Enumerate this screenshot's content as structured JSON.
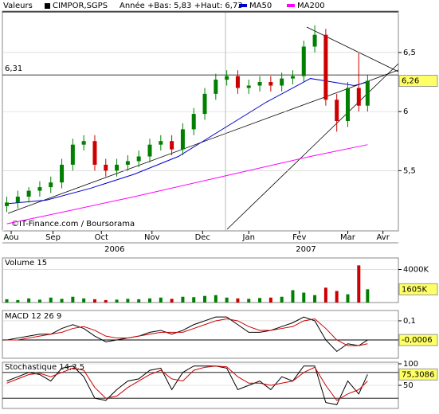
{
  "header": {
    "menu": "Valeurs"
  },
  "chart_data": [
    {
      "type": "candlestick",
      "title": "CIMPOR,SGPS",
      "subtitle": "Année +Bas: 5,83 +Haut: 6,73",
      "source": "©IT-Finance.com / Boursorama",
      "x": [
        2,
        7,
        12,
        17,
        22,
        27,
        32,
        37,
        42,
        47,
        52,
        57,
        62,
        67,
        72,
        77,
        82,
        87,
        92,
        97,
        102,
        107,
        112,
        117,
        122,
        127,
        132,
        137,
        142,
        147,
        152,
        157,
        162,
        166
      ],
      "open": [
        5.2,
        5.23,
        5.28,
        5.33,
        5.36,
        5.4,
        5.55,
        5.72,
        5.75,
        5.55,
        5.5,
        5.55,
        5.58,
        5.62,
        5.72,
        5.75,
        5.68,
        5.85,
        5.98,
        6.15,
        6.27,
        6.3,
        6.2,
        6.22,
        6.25,
        6.22,
        6.28,
        6.3,
        6.55,
        6.65,
        6.1,
        5.92,
        6.2,
        6.05
      ],
      "high": [
        5.28,
        5.33,
        5.36,
        5.41,
        5.45,
        5.6,
        5.77,
        5.8,
        5.8,
        5.6,
        5.6,
        5.63,
        5.67,
        5.77,
        5.8,
        5.8,
        5.9,
        6.03,
        6.2,
        6.32,
        6.35,
        6.35,
        6.27,
        6.3,
        6.3,
        6.33,
        6.35,
        6.6,
        6.73,
        6.7,
        6.15,
        6.25,
        6.5,
        6.31
      ],
      "low": [
        5.15,
        5.18,
        5.23,
        5.28,
        5.31,
        5.35,
        5.5,
        5.67,
        5.5,
        5.45,
        5.45,
        5.5,
        5.53,
        5.57,
        5.67,
        5.63,
        5.63,
        5.8,
        5.93,
        6.1,
        6.22,
        6.15,
        6.15,
        6.17,
        6.17,
        6.17,
        6.23,
        6.25,
        6.5,
        6.05,
        5.83,
        5.87,
        6.0,
        6.0
      ],
      "close": [
        5.23,
        5.28,
        5.33,
        5.36,
        5.4,
        5.55,
        5.72,
        5.75,
        5.55,
        5.5,
        5.55,
        5.58,
        5.62,
        5.72,
        5.75,
        5.68,
        5.85,
        5.98,
        6.15,
        6.27,
        6.3,
        6.2,
        6.22,
        6.25,
        6.22,
        6.28,
        6.3,
        6.55,
        6.65,
        6.1,
        5.92,
        6.2,
        6.05,
        6.26
      ],
      "up_color": "#008000",
      "down_color": "#cc0000",
      "series": [
        {
          "name": "MA50",
          "color": "#0000cc",
          "x": [
            2,
            20,
            40,
            60,
            80,
            100,
            120,
            140,
            150,
            160,
            166
          ],
          "values": [
            5.22,
            5.25,
            5.35,
            5.47,
            5.62,
            5.85,
            6.08,
            6.28,
            6.25,
            6.22,
            6.25
          ]
        },
        {
          "name": "MA200",
          "color": "#ff00ff",
          "x": [
            2,
            20,
            60,
            100,
            140,
            166
          ],
          "values": [
            5.05,
            5.12,
            5.28,
            5.45,
            5.62,
            5.72
          ]
        }
      ],
      "reference": {
        "value": 6.31,
        "label": "6,31"
      },
      "last": {
        "value": 6.26,
        "label": "6,26"
      },
      "xlim": [
        0,
        180
      ],
      "ylim": [
        4.99,
        6.85
      ],
      "xticks": [
        {
          "value": 4,
          "label": "Aou"
        },
        {
          "value": 23,
          "label": "Sep"
        },
        {
          "value": 45,
          "label": "Oct"
        },
        {
          "value": 68,
          "label": "Nov"
        },
        {
          "value": 91,
          "label": "Dec"
        },
        {
          "value": 112,
          "label": "Jan"
        },
        {
          "value": 135,
          "label": "Fev"
        },
        {
          "value": 157,
          "label": "Mar"
        },
        {
          "value": 173,
          "label": "Avr"
        }
      ],
      "years": [
        {
          "value": 51,
          "label": "2006"
        },
        {
          "value": 138,
          "label": "2007"
        }
      ],
      "yticks": [
        {
          "value": 6.5,
          "label": "6,5"
        },
        {
          "value": 6,
          "label": "6"
        },
        {
          "value": 5.5,
          "label": "5,5"
        }
      ]
    },
    {
      "type": "bar",
      "title": "Volume 15",
      "x": [
        2,
        7,
        12,
        17,
        22,
        27,
        32,
        37,
        42,
        47,
        52,
        57,
        62,
        67,
        72,
        77,
        82,
        87,
        92,
        97,
        102,
        107,
        112,
        117,
        122,
        127,
        132,
        137,
        142,
        147,
        152,
        157,
        162,
        166
      ],
      "values": [
        400,
        300,
        500,
        350,
        600,
        450,
        700,
        500,
        400,
        300,
        350,
        450,
        400,
        500,
        600,
        450,
        700,
        650,
        800,
        900,
        600,
        500,
        450,
        550,
        600,
        700,
        1500,
        1200,
        900,
        1800,
        1400,
        1000,
        4500,
        1605
      ],
      "xlim": [
        0,
        180
      ],
      "ylim": [
        0,
        5400
      ],
      "yticks": [
        {
          "value": 4000,
          "label": "4000K"
        }
      ],
      "last": {
        "value": 1605,
        "label": "1605K"
      }
    },
    {
      "type": "line",
      "title": "MACD 12 26 9",
      "x": [
        2,
        7,
        12,
        17,
        22,
        27,
        32,
        37,
        42,
        47,
        52,
        57,
        62,
        67,
        72,
        77,
        82,
        87,
        92,
        97,
        102,
        107,
        112,
        117,
        122,
        127,
        132,
        137,
        142,
        147,
        152,
        157,
        162,
        166
      ],
      "series": [
        {
          "color": "#000000",
          "values": [
            0.0,
            0.01,
            0.02,
            0.03,
            0.03,
            0.06,
            0.08,
            0.06,
            0.02,
            -0.01,
            0.0,
            0.01,
            0.02,
            0.04,
            0.05,
            0.03,
            0.05,
            0.08,
            0.1,
            0.12,
            0.12,
            0.08,
            0.04,
            0.04,
            0.05,
            0.07,
            0.09,
            0.12,
            0.1,
            0.0,
            -0.06,
            -0.02,
            -0.03,
            -0.0006
          ]
        },
        {
          "color": "#cc0000",
          "values": [
            0.0,
            0.0,
            0.01,
            0.02,
            0.03,
            0.04,
            0.06,
            0.07,
            0.05,
            0.02,
            0.01,
            0.01,
            0.02,
            0.03,
            0.04,
            0.04,
            0.04,
            0.06,
            0.08,
            0.1,
            0.11,
            0.1,
            0.07,
            0.05,
            0.05,
            0.06,
            0.07,
            0.1,
            0.11,
            0.06,
            0.0,
            -0.03,
            -0.03,
            -0.02
          ]
        }
      ],
      "xlim": [
        0,
        180
      ],
      "ylim": [
        -0.096,
        0.154
      ],
      "yticks": [
        {
          "value": 0.1,
          "label": "0,1"
        }
      ],
      "last": {
        "value": -0.0006,
        "label": "-0,0006"
      }
    },
    {
      "type": "line",
      "title": "Stochastique 14,3,5",
      "x": [
        2,
        7,
        12,
        17,
        22,
        27,
        32,
        37,
        42,
        47,
        52,
        57,
        62,
        67,
        72,
        77,
        82,
        87,
        92,
        97,
        102,
        107,
        112,
        117,
        122,
        127,
        132,
        137,
        142,
        147,
        152,
        157,
        162,
        166
      ],
      "series": [
        {
          "color": "#000000",
          "values": [
            60,
            70,
            80,
            75,
            60,
            90,
            95,
            70,
            20,
            15,
            40,
            60,
            65,
            85,
            90,
            40,
            80,
            95,
            95,
            95,
            90,
            40,
            50,
            60,
            40,
            70,
            60,
            95,
            95,
            10,
            5,
            60,
            30,
            75.3086
          ]
        },
        {
          "color": "#cc0000",
          "values": [
            55,
            65,
            75,
            78,
            70,
            80,
            90,
            85,
            45,
            20,
            25,
            45,
            60,
            75,
            85,
            65,
            60,
            85,
            92,
            95,
            93,
            70,
            55,
            55,
            50,
            55,
            60,
            80,
            92,
            50,
            15,
            30,
            40,
            60
          ]
        }
      ],
      "bands": [
        80,
        20
      ],
      "xlim": [
        0,
        180
      ],
      "ylim": [
        0,
        100
      ],
      "yticks": [
        100,
        50
      ],
      "last": {
        "value": 75.3086,
        "label": "75,3086"
      }
    }
  ]
}
